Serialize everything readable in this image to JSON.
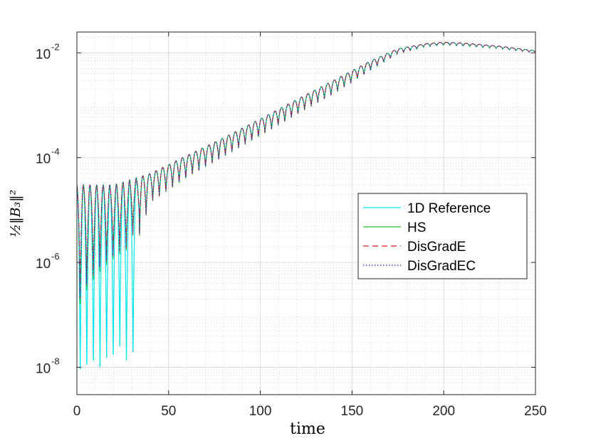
{
  "chart_data": {
    "type": "line",
    "xlabel": "time",
    "ylabel": "½‖B₃‖²",
    "yscale": "log",
    "xlim": [
      0,
      250
    ],
    "ylim": [
      3e-09,
      0.025
    ],
    "xticks": [
      "0",
      "50",
      "100",
      "150",
      "200",
      "250"
    ],
    "yticks": [
      {
        "value": 1e-08,
        "base": "10",
        "exp": "-8"
      },
      {
        "value": 1e-06,
        "base": "10",
        "exp": "-6"
      },
      {
        "value": 0.0001,
        "base": "10",
        "exp": "-4"
      },
      {
        "value": 0.01,
        "base": "10",
        "exp": "-2"
      }
    ],
    "grid": true,
    "minor_grid": true,
    "legend_position": "right",
    "oscillation_period": 3.6,
    "envelope": {
      "upper": {
        "t": [
          0,
          20,
          40,
          60,
          80,
          100,
          120,
          140,
          160,
          175,
          190,
          200,
          210,
          230,
          250
        ],
        "v": [
          3e-05,
          3e-05,
          5e-05,
          0.00011,
          0.00024,
          0.00055,
          0.0013,
          0.003,
          0.007,
          0.012,
          0.015,
          0.016,
          0.0155,
          0.0135,
          0.011
        ]
      },
      "lower": {
        "t": [
          0,
          20,
          40,
          60,
          80,
          100,
          120,
          140,
          160,
          175,
          190,
          200,
          210,
          230,
          250
        ],
        "v": [
          1e-08,
          8e-08,
          1.3e-05,
          4e-05,
          0.0001,
          0.00025,
          0.00065,
          0.0016,
          0.0045,
          0.0095,
          0.013,
          0.014,
          0.0135,
          0.012,
          0.01
        ]
      }
    },
    "reference_dips": {
      "t": [
        3,
        6.5,
        10,
        13.5,
        17,
        20.5,
        24,
        27.5,
        31
      ],
      "v": [
        4e-09,
        5e-09,
        6e-09,
        4.5e-09,
        7e-09,
        8e-09,
        1.2e-08,
        6e-09,
        9e-09
      ]
    },
    "series": [
      {
        "name": "1D Reference",
        "color": "#00e5ee",
        "dash": "solid"
      },
      {
        "name": "HS",
        "color": "#22c022",
        "dash": "solid"
      },
      {
        "name": "DisGradE",
        "color": "#dd2020",
        "dash": "dashed"
      },
      {
        "name": "DisGradEC",
        "color": "#2020dd",
        "dash": "dotted"
      }
    ]
  }
}
